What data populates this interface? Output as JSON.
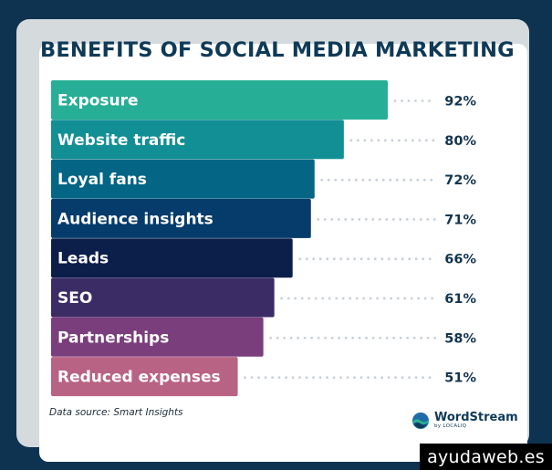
{
  "chart_data": {
    "type": "bar",
    "orientation": "horizontal",
    "title": "BENEFITS OF SOCIAL MEDIA MARKETING",
    "categories": [
      "Exposure",
      "Website traffic",
      "Loyal fans",
      "Audience insights",
      "Leads",
      "SEO",
      "Partnerships",
      "Reduced expenses"
    ],
    "values": [
      92,
      80,
      72,
      71,
      66,
      61,
      58,
      51
    ],
    "value_labels": [
      "92%",
      "80%",
      "72%",
      "71%",
      "66%",
      "61%",
      "58%",
      "51%"
    ],
    "unit": "%",
    "bar_colors": [
      "#27ae96",
      "#128f95",
      "#046585",
      "#063c6c",
      "#0c1e4a",
      "#3c2c66",
      "#7a3e7c",
      "#b86383"
    ],
    "grid": false,
    "legend": "none"
  },
  "source_note": "Data source: Smart Insights",
  "brand": {
    "name": "WordStream",
    "sub": "by LOCALIQ",
    "icon": "wordstream-logo-icon"
  },
  "watermark": "ayudaweb.es",
  "colors": {
    "background": "#0d3350",
    "title": "#0f3a57",
    "percent_text": "#14354f"
  }
}
